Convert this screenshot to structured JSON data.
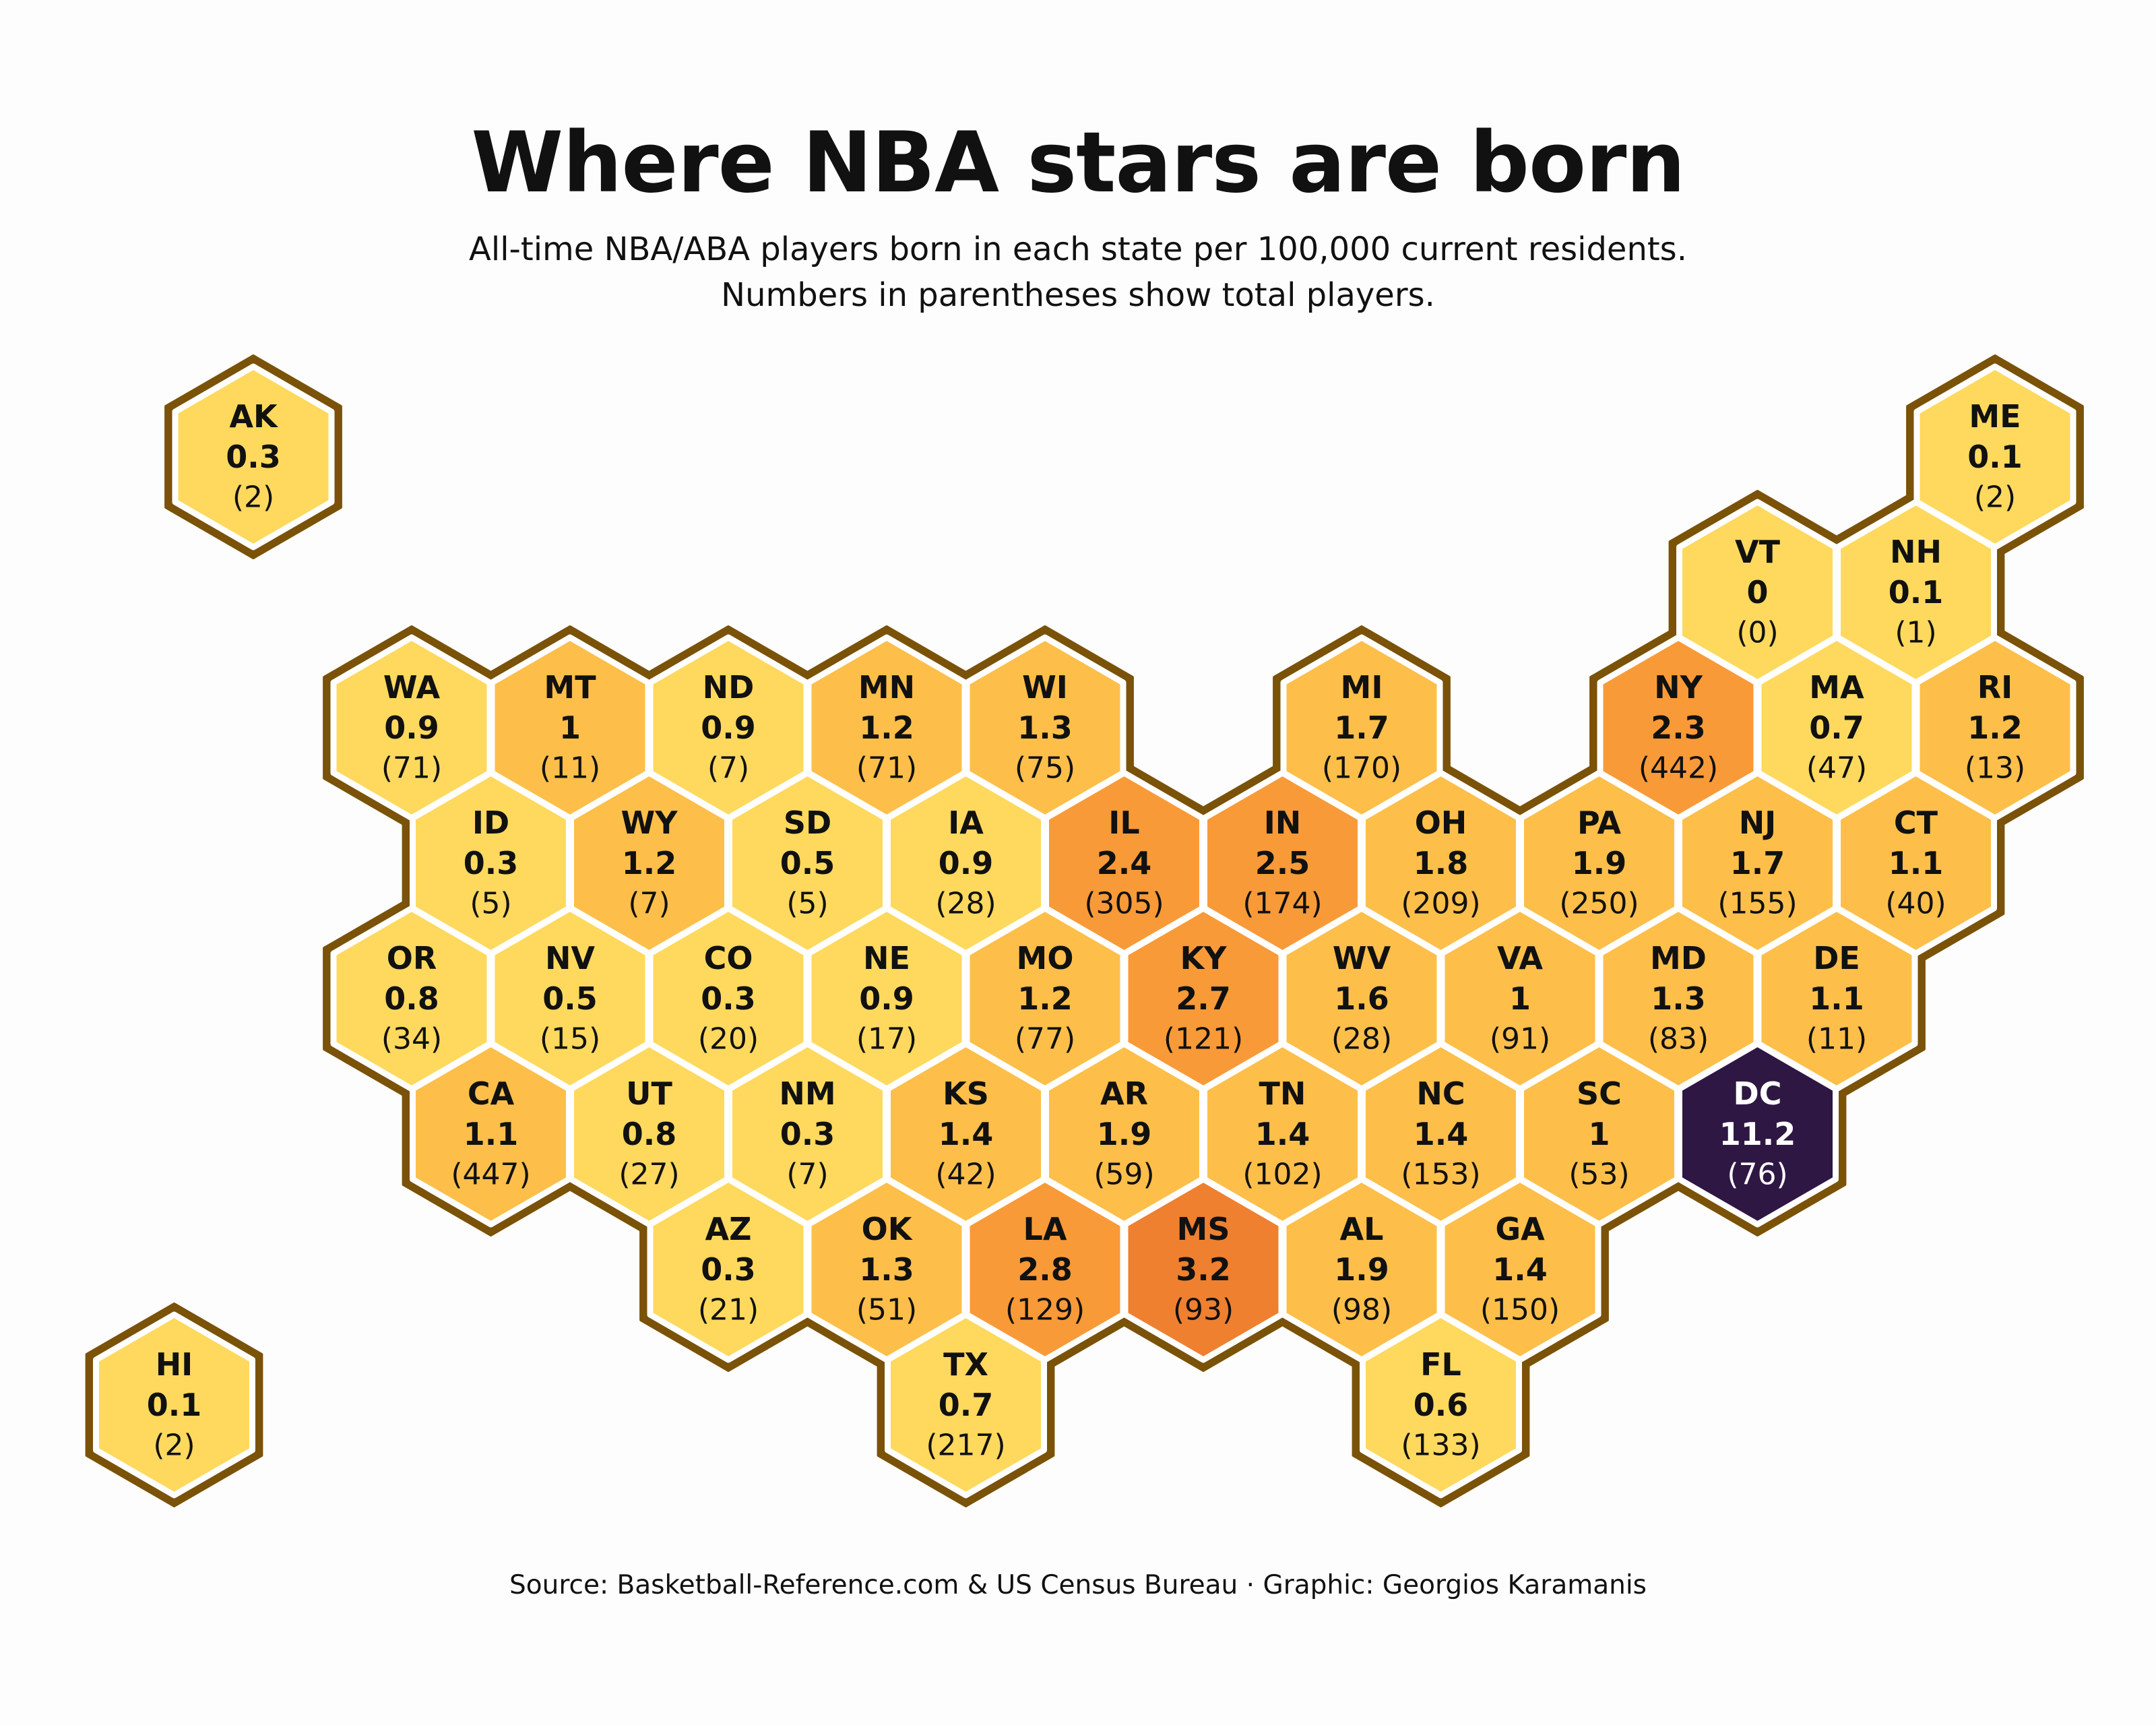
{
  "title": "Where NBA stars are born",
  "subtitle_line1": "All-time NBA/ABA players born in each state per 100,000 current residents.",
  "subtitle_line2": "Numbers in parentheses show total players.",
  "source": "Source: Basketball-Reference.com & US Census Bureau · Graphic: Georgios Karamanis",
  "colors": {
    "border": "#7a5208",
    "cell_edge": "#ffffff",
    "scale": [
      "#ffd95e",
      "#fdbf4a",
      "#f99a38",
      "#ee8030"
    ],
    "dc_fill": "#2f1744",
    "text_dark": "#111111",
    "text_light": "#ffffff"
  },
  "chart_data": {
    "type": "hexbin-tile-map",
    "metric": "All-time NBA/ABA players born per 100,000 current residents",
    "states": [
      {
        "abbr": "AK",
        "value": "0.3",
        "count": "(2)",
        "row": 0,
        "col": 0
      },
      {
        "abbr": "ME",
        "value": "0.1",
        "count": "(2)",
        "row": 0,
        "col": 11
      },
      {
        "abbr": "VT",
        "value": "0",
        "count": "(0)",
        "row": 1,
        "col": 9.5
      },
      {
        "abbr": "NH",
        "value": "0.1",
        "count": "(1)",
        "row": 1,
        "col": 10.5
      },
      {
        "abbr": "WA",
        "value": "0.9",
        "count": "(71)",
        "row": 2,
        "col": 1
      },
      {
        "abbr": "MT",
        "value": "1",
        "count": "(11)",
        "row": 2,
        "col": 2
      },
      {
        "abbr": "ND",
        "value": "0.9",
        "count": "(7)",
        "row": 2,
        "col": 3
      },
      {
        "abbr": "MN",
        "value": "1.2",
        "count": "(71)",
        "row": 2,
        "col": 4
      },
      {
        "abbr": "WI",
        "value": "1.3",
        "count": "(75)",
        "row": 2,
        "col": 5
      },
      {
        "abbr": "MI",
        "value": "1.7",
        "count": "(170)",
        "row": 2,
        "col": 7
      },
      {
        "abbr": "NY",
        "value": "2.3",
        "count": "(442)",
        "row": 2,
        "col": 9
      },
      {
        "abbr": "MA",
        "value": "0.7",
        "count": "(47)",
        "row": 2,
        "col": 10
      },
      {
        "abbr": "RI",
        "value": "1.2",
        "count": "(13)",
        "row": 2,
        "col": 11
      },
      {
        "abbr": "ID",
        "value": "0.3",
        "count": "(5)",
        "row": 3,
        "col": 1.5
      },
      {
        "abbr": "WY",
        "value": "1.2",
        "count": "(7)",
        "row": 3,
        "col": 2.5
      },
      {
        "abbr": "SD",
        "value": "0.5",
        "count": "(5)",
        "row": 3,
        "col": 3.5
      },
      {
        "abbr": "IA",
        "value": "0.9",
        "count": "(28)",
        "row": 3,
        "col": 4.5
      },
      {
        "abbr": "IL",
        "value": "2.4",
        "count": "(305)",
        "row": 3,
        "col": 5.5
      },
      {
        "abbr": "IN",
        "value": "2.5",
        "count": "(174)",
        "row": 3,
        "col": 6.5
      },
      {
        "abbr": "OH",
        "value": "1.8",
        "count": "(209)",
        "row": 3,
        "col": 7.5
      },
      {
        "abbr": "PA",
        "value": "1.9",
        "count": "(250)",
        "row": 3,
        "col": 8.5
      },
      {
        "abbr": "NJ",
        "value": "1.7",
        "count": "(155)",
        "row": 3,
        "col": 9.5
      },
      {
        "abbr": "CT",
        "value": "1.1",
        "count": "(40)",
        "row": 3,
        "col": 10.5
      },
      {
        "abbr": "OR",
        "value": "0.8",
        "count": "(34)",
        "row": 4,
        "col": 1
      },
      {
        "abbr": "NV",
        "value": "0.5",
        "count": "(15)",
        "row": 4,
        "col": 2
      },
      {
        "abbr": "CO",
        "value": "0.3",
        "count": "(20)",
        "row": 4,
        "col": 3
      },
      {
        "abbr": "NE",
        "value": "0.9",
        "count": "(17)",
        "row": 4,
        "col": 4
      },
      {
        "abbr": "MO",
        "value": "1.2",
        "count": "(77)",
        "row": 4,
        "col": 5
      },
      {
        "abbr": "KY",
        "value": "2.7",
        "count": "(121)",
        "row": 4,
        "col": 6
      },
      {
        "abbr": "WV",
        "value": "1.6",
        "count": "(28)",
        "row": 4,
        "col": 7
      },
      {
        "abbr": "VA",
        "value": "1",
        "count": "(91)",
        "row": 4,
        "col": 8
      },
      {
        "abbr": "MD",
        "value": "1.3",
        "count": "(83)",
        "row": 4,
        "col": 9
      },
      {
        "abbr": "DE",
        "value": "1.1",
        "count": "(11)",
        "row": 4,
        "col": 10
      },
      {
        "abbr": "CA",
        "value": "1.1",
        "count": "(447)",
        "row": 5,
        "col": 1.5
      },
      {
        "abbr": "UT",
        "value": "0.8",
        "count": "(27)",
        "row": 5,
        "col": 2.5
      },
      {
        "abbr": "NM",
        "value": "0.3",
        "count": "(7)",
        "row": 5,
        "col": 3.5
      },
      {
        "abbr": "KS",
        "value": "1.4",
        "count": "(42)",
        "row": 5,
        "col": 4.5
      },
      {
        "abbr": "AR",
        "value": "1.9",
        "count": "(59)",
        "row": 5,
        "col": 5.5
      },
      {
        "abbr": "TN",
        "value": "1.4",
        "count": "(102)",
        "row": 5,
        "col": 6.5
      },
      {
        "abbr": "NC",
        "value": "1.4",
        "count": "(153)",
        "row": 5,
        "col": 7.5
      },
      {
        "abbr": "SC",
        "value": "1",
        "count": "(53)",
        "row": 5,
        "col": 8.5
      },
      {
        "abbr": "DC",
        "value": "11.2",
        "count": "(76)",
        "row": 5,
        "col": 9.5
      },
      {
        "abbr": "AZ",
        "value": "0.3",
        "count": "(21)",
        "row": 6,
        "col": 3
      },
      {
        "abbr": "OK",
        "value": "1.3",
        "count": "(51)",
        "row": 6,
        "col": 4
      },
      {
        "abbr": "LA",
        "value": "2.8",
        "count": "(129)",
        "row": 6,
        "col": 5
      },
      {
        "abbr": "MS",
        "value": "3.2",
        "count": "(93)",
        "row": 6,
        "col": 6
      },
      {
        "abbr": "AL",
        "value": "1.9",
        "count": "(98)",
        "row": 6,
        "col": 7
      },
      {
        "abbr": "GA",
        "value": "1.4",
        "count": "(150)",
        "row": 6,
        "col": 8
      },
      {
        "abbr": "HI",
        "value": "0.1",
        "count": "(2)",
        "row": 7,
        "col": -0.5
      },
      {
        "abbr": "TX",
        "value": "0.7",
        "count": "(217)",
        "row": 7,
        "col": 4.5
      },
      {
        "abbr": "FL",
        "value": "0.6",
        "count": "(133)",
        "row": 7,
        "col": 7.5
      }
    ]
  }
}
